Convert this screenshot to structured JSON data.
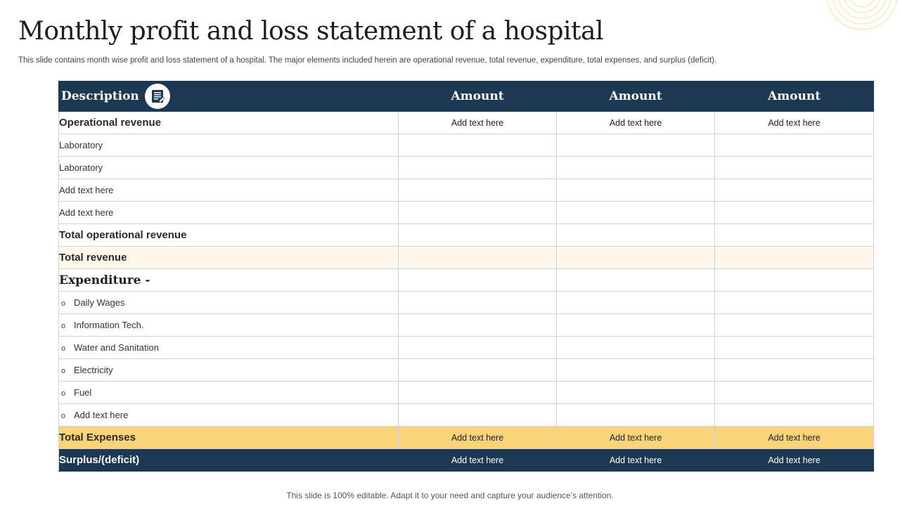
{
  "slide": {
    "title": "Monthly profit and loss statement of a hospital",
    "subtitle": "This slide contains month wise profit and loss statement of a hospital. The major elements included herein are operational revenue, total revenue, expenditure, total expenses, and surplus (deficit).",
    "footer": "This slide is 100% editable. Adapt it to your need and capture your audience’s attention."
  },
  "table": {
    "headers": {
      "description": "Description",
      "amount_1": "Amount",
      "amount_2": "Amount",
      "amount_3": "Amount"
    },
    "rows": {
      "operational_revenue": {
        "label": "Operational revenue",
        "values": [
          "Add text here",
          "Add text here",
          "Add text here"
        ]
      },
      "laboratory_1": {
        "label": "Laboratory"
      },
      "laboratory_2": {
        "label": "Laboratory"
      },
      "add_text_1": {
        "label": "Add text here"
      },
      "add_text_2": {
        "label": "Add text here"
      },
      "total_operational_revenue": {
        "label": "Total operational revenue"
      },
      "total_revenue": {
        "label": "Total revenue"
      },
      "expenditure": {
        "label": "Expenditure -"
      },
      "daily_wages": {
        "label": "Daily Wages"
      },
      "information_tech": {
        "label": "Information Tech."
      },
      "water_sanitation": {
        "label": "Water and Sanitation"
      },
      "electricity": {
        "label": "Electricity"
      },
      "fuel": {
        "label": "Fuel"
      },
      "add_text_3": {
        "label": "Add text here"
      },
      "total_expenses": {
        "label": "Total Expenses",
        "values": [
          "Add text here",
          "Add text here",
          "Add text here"
        ]
      },
      "surplus_deficit": {
        "label": "Surplus/(deficit)",
        "values": [
          "Add text here",
          "Add text here",
          "Add text here"
        ]
      }
    },
    "bullet_glyph": "o"
  },
  "colors": {
    "header_navy": "#1c3853",
    "total_expenses_gold": "#f9d47a",
    "total_revenue_cream": "#fdf8ea",
    "decor_lines": "#f2e2a8"
  },
  "icons": {
    "header_icon": "document-icon",
    "decor": "concentric-circles-decoration"
  }
}
